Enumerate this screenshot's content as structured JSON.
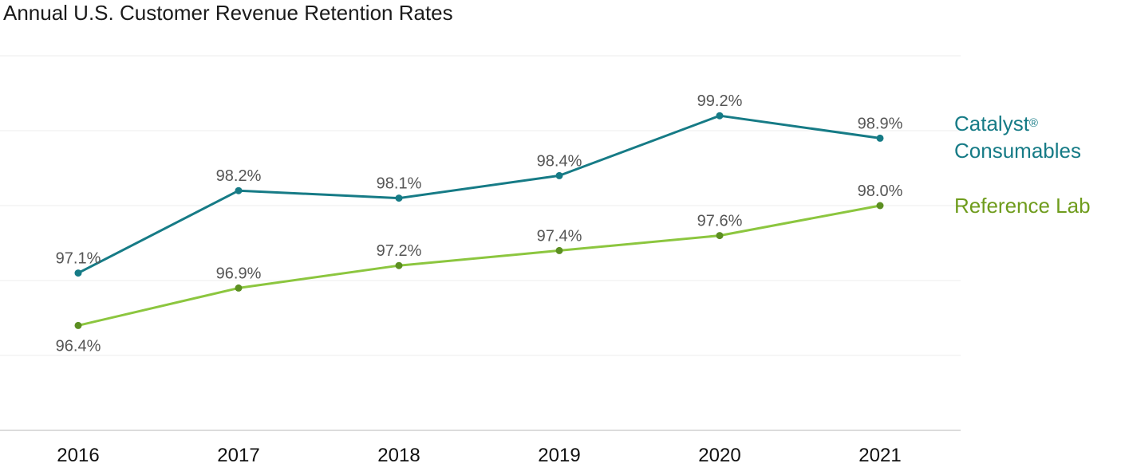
{
  "title": "Annual U.S. Customer Revenue Retention Rates",
  "colors": {
    "catalyst_line": "#167b86",
    "catalyst_text": "#167b86",
    "ref_line": "#8cc63f",
    "ref_marker": "#5c8f22",
    "ref_text": "#6f9c1d",
    "label_text": "#555555",
    "grid": "#eeeeee",
    "axis": "#c8c8c8"
  },
  "legend": {
    "catalyst_line1": "Catalyst",
    "catalyst_sup": "®",
    "catalyst_line2": "Consumables",
    "reference": "Reference Lab"
  },
  "chart_data": {
    "type": "line",
    "title": "Annual U.S. Customer Revenue Retention Rates",
    "categories": [
      "2016",
      "2017",
      "2018",
      "2019",
      "2020",
      "2021"
    ],
    "series": [
      {
        "name": "Catalyst® Consumables",
        "values": [
          97.1,
          98.2,
          98.1,
          98.4,
          99.2,
          98.9
        ],
        "labels": [
          "97.1%",
          "98.2%",
          "98.1%",
          "98.4%",
          "99.2%",
          "98.9%"
        ]
      },
      {
        "name": "Reference Lab",
        "values": [
          96.4,
          96.9,
          97.2,
          97.4,
          97.6,
          98.0
        ],
        "labels": [
          "96.4%",
          "96.9%",
          "97.2%",
          "97.4%",
          "97.6%",
          "98.0%"
        ]
      }
    ],
    "ylim": [
      95.0,
      100.0
    ],
    "grid": true,
    "legend": "right"
  }
}
